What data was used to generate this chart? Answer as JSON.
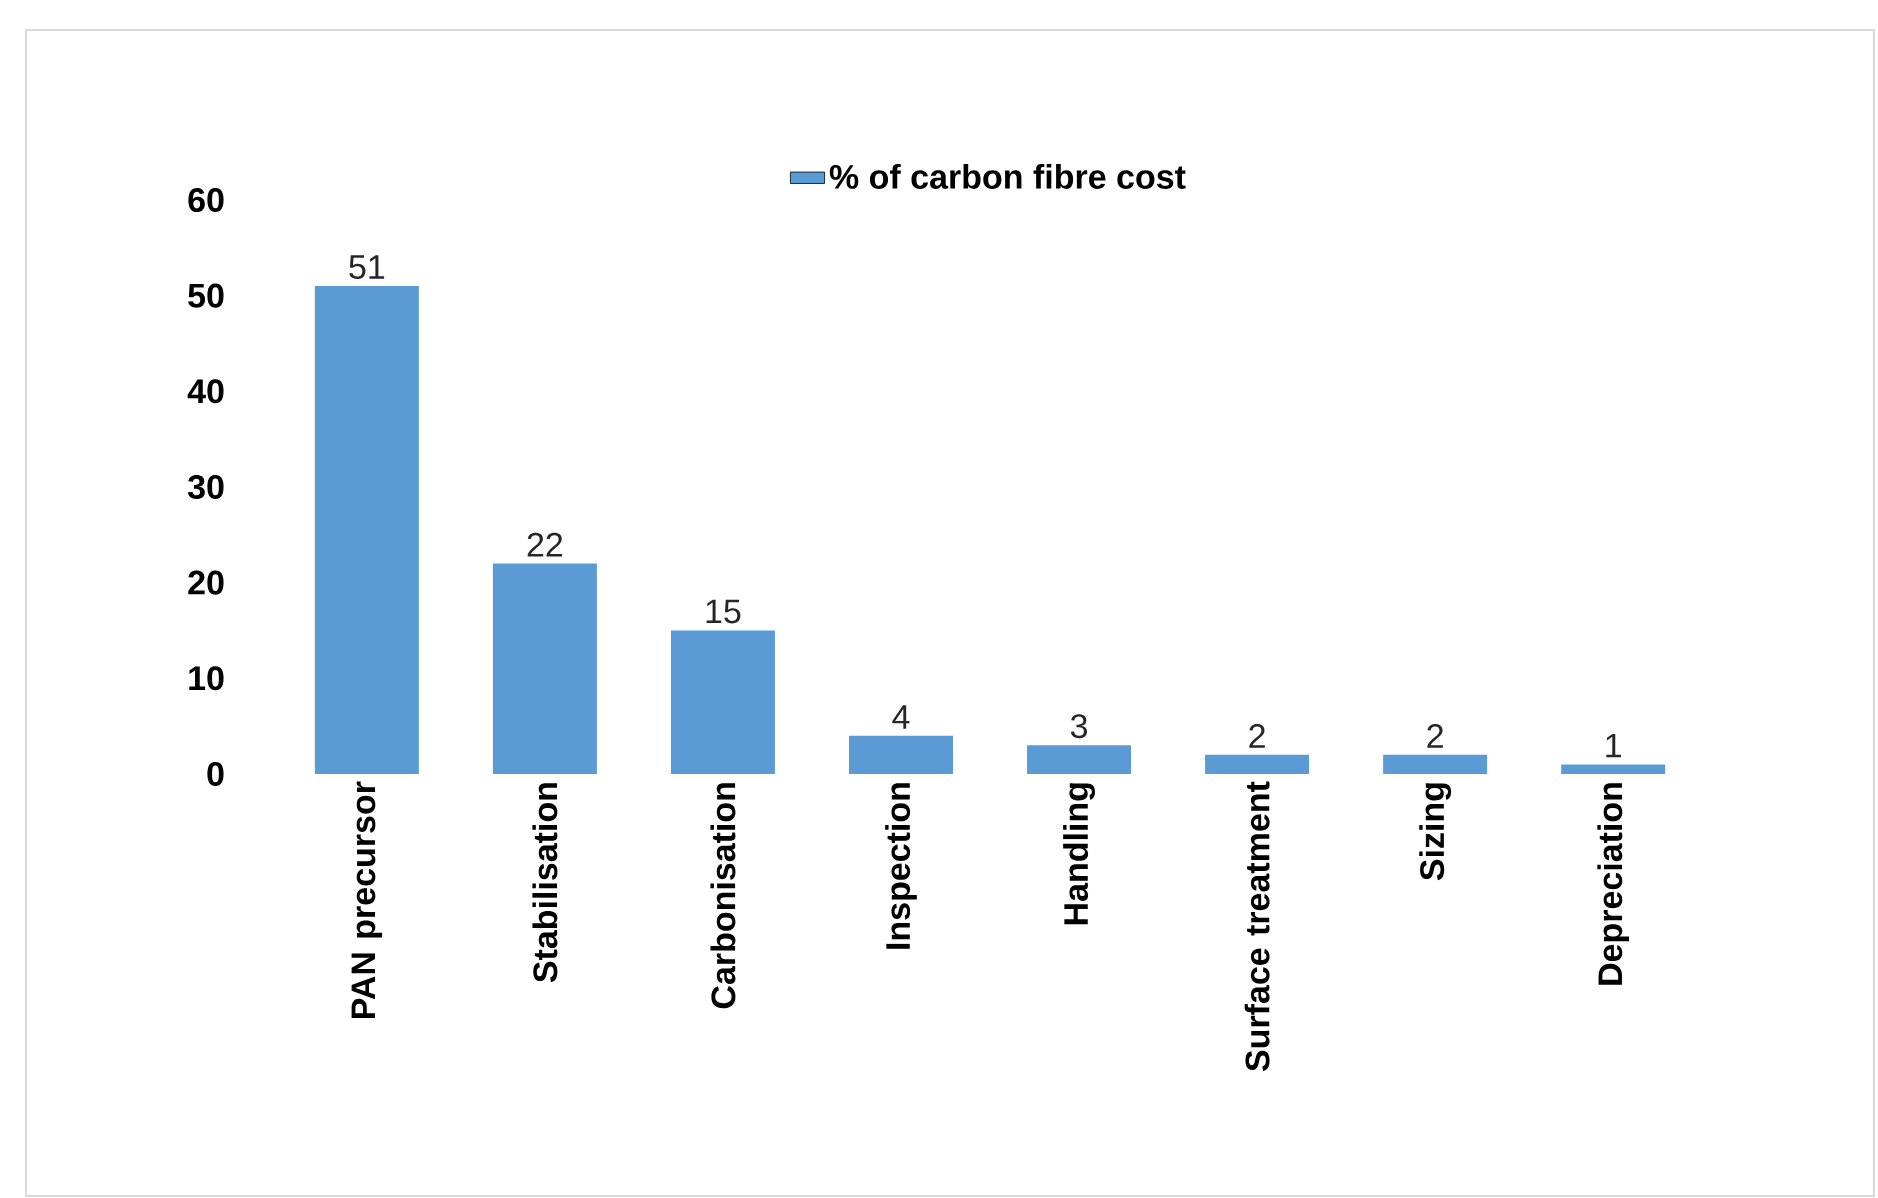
{
  "chart_data": {
    "type": "bar",
    "categories": [
      "PAN precursor",
      "Stabilisation",
      "Carbonisation",
      "Inspection",
      "Handling",
      "Surface treatment",
      "Sizing",
      "Depreciation"
    ],
    "series": [
      {
        "name": "% of carbon fibre cost",
        "color": "#5b9bd5",
        "values": [
          51,
          22,
          15,
          4,
          3,
          2,
          2,
          1
        ]
      }
    ],
    "ylim": [
      0,
      60
    ],
    "yticks": [
      0,
      10,
      20,
      30,
      40,
      50,
      60
    ],
    "data_labels": true,
    "legend": "top"
  }
}
